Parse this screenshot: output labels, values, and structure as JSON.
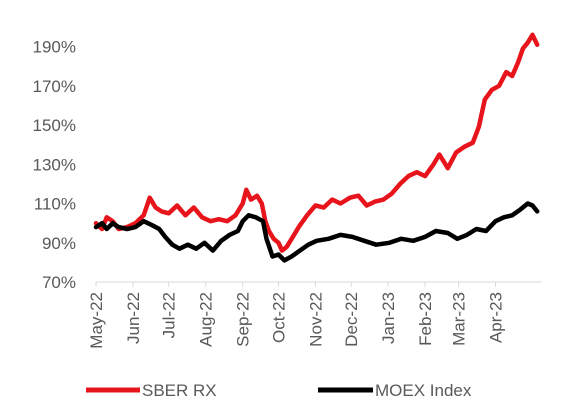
{
  "chart_data": {
    "type": "line",
    "title": "",
    "xlabel": "",
    "ylabel": "",
    "ylim": [
      70,
      200
    ],
    "yticks": [
      70,
      90,
      110,
      130,
      150,
      170,
      190
    ],
    "ytick_labels": [
      "70%",
      "90%",
      "110%",
      "130%",
      "150%",
      "170%",
      "190%"
    ],
    "x_range": [
      "2022-05-01",
      "2023-05-10"
    ],
    "xticks": [
      "2022-05-01",
      "2022-06-01",
      "2022-07-01",
      "2022-08-01",
      "2022-09-01",
      "2022-10-01",
      "2022-11-01",
      "2022-12-01",
      "2023-01-01",
      "2023-02-01",
      "2023-03-01",
      "2023-04-01"
    ],
    "xtick_labels": [
      "May-22",
      "Jun-22",
      "Jul-22",
      "Aug-22",
      "Sep-22",
      "Oct-22",
      "Nov-22",
      "Dec-22",
      "Jan-23",
      "Feb-23",
      "Mar-23",
      "Apr-23"
    ],
    "grid": false,
    "legend_position": "bottom",
    "series": [
      {
        "name": "SBER RX",
        "color": "#e8141b",
        "points": [
          [
            "2022-05-01",
            100
          ],
          [
            "2022-05-06",
            97
          ],
          [
            "2022-05-10",
            103
          ],
          [
            "2022-05-15",
            101
          ],
          [
            "2022-05-20",
            97
          ],
          [
            "2022-05-27",
            98
          ],
          [
            "2022-06-03",
            100
          ],
          [
            "2022-06-10",
            104
          ],
          [
            "2022-06-15",
            113
          ],
          [
            "2022-06-20",
            108
          ],
          [
            "2022-06-25",
            106
          ],
          [
            "2022-07-01",
            105
          ],
          [
            "2022-07-08",
            109
          ],
          [
            "2022-07-15",
            104
          ],
          [
            "2022-07-22",
            108
          ],
          [
            "2022-07-29",
            103
          ],
          [
            "2022-08-05",
            101
          ],
          [
            "2022-08-12",
            102
          ],
          [
            "2022-08-19",
            101
          ],
          [
            "2022-08-26",
            104
          ],
          [
            "2022-09-01",
            110
          ],
          [
            "2022-09-04",
            117
          ],
          [
            "2022-09-08",
            112
          ],
          [
            "2022-09-13",
            114
          ],
          [
            "2022-09-17",
            110
          ],
          [
            "2022-09-20",
            101
          ],
          [
            "2022-09-23",
            96
          ],
          [
            "2022-09-27",
            92
          ],
          [
            "2022-10-01",
            90
          ],
          [
            "2022-10-04",
            86
          ],
          [
            "2022-10-08",
            88
          ],
          [
            "2022-10-13",
            93
          ],
          [
            "2022-10-18",
            98
          ],
          [
            "2022-10-25",
            104
          ],
          [
            "2022-11-01",
            109
          ],
          [
            "2022-11-08",
            108
          ],
          [
            "2022-11-15",
            112
          ],
          [
            "2022-11-22",
            110
          ],
          [
            "2022-11-30",
            113
          ],
          [
            "2022-12-07",
            114
          ],
          [
            "2022-12-14",
            109
          ],
          [
            "2022-12-21",
            111
          ],
          [
            "2022-12-28",
            112
          ],
          [
            "2023-01-04",
            115
          ],
          [
            "2023-01-11",
            120
          ],
          [
            "2023-01-18",
            124
          ],
          [
            "2023-01-25",
            126
          ],
          [
            "2023-02-01",
            124
          ],
          [
            "2023-02-08",
            130
          ],
          [
            "2023-02-13",
            135
          ],
          [
            "2023-02-20",
            128
          ],
          [
            "2023-02-27",
            136
          ],
          [
            "2023-03-06",
            139
          ],
          [
            "2023-03-13",
            141
          ],
          [
            "2023-03-18",
            149
          ],
          [
            "2023-03-23",
            163
          ],
          [
            "2023-03-29",
            168
          ],
          [
            "2023-04-04",
            170
          ],
          [
            "2023-04-10",
            177
          ],
          [
            "2023-04-15",
            175
          ],
          [
            "2023-04-20",
            182
          ],
          [
            "2023-04-24",
            189
          ],
          [
            "2023-04-28",
            192
          ],
          [
            "2023-05-02",
            196
          ],
          [
            "2023-05-06",
            191
          ]
        ]
      },
      {
        "name": "MOEX Index",
        "color": "#000000",
        "points": [
          [
            "2022-05-01",
            98
          ],
          [
            "2022-05-06",
            100
          ],
          [
            "2022-05-10",
            97
          ],
          [
            "2022-05-15",
            100
          ],
          [
            "2022-05-20",
            98
          ],
          [
            "2022-05-27",
            97
          ],
          [
            "2022-06-03",
            98
          ],
          [
            "2022-06-10",
            101
          ],
          [
            "2022-06-17",
            99
          ],
          [
            "2022-06-23",
            97
          ],
          [
            "2022-06-28",
            93
          ],
          [
            "2022-07-04",
            89
          ],
          [
            "2022-07-10",
            87
          ],
          [
            "2022-07-17",
            89
          ],
          [
            "2022-07-24",
            87
          ],
          [
            "2022-07-31",
            90
          ],
          [
            "2022-08-07",
            86
          ],
          [
            "2022-08-14",
            91
          ],
          [
            "2022-08-21",
            94
          ],
          [
            "2022-08-28",
            96
          ],
          [
            "2022-09-01",
            101
          ],
          [
            "2022-09-06",
            104
          ],
          [
            "2022-09-12",
            103
          ],
          [
            "2022-09-18",
            101
          ],
          [
            "2022-09-21",
            92
          ],
          [
            "2022-09-26",
            83
          ],
          [
            "2022-10-01",
            84
          ],
          [
            "2022-10-06",
            81
          ],
          [
            "2022-10-12",
            83
          ],
          [
            "2022-10-19",
            86
          ],
          [
            "2022-10-26",
            89
          ],
          [
            "2022-11-02",
            91
          ],
          [
            "2022-11-12",
            92
          ],
          [
            "2022-11-22",
            94
          ],
          [
            "2022-12-02",
            93
          ],
          [
            "2022-12-12",
            91
          ],
          [
            "2022-12-22",
            89
          ],
          [
            "2023-01-02",
            90
          ],
          [
            "2023-01-12",
            92
          ],
          [
            "2023-01-22",
            91
          ],
          [
            "2023-02-01",
            93
          ],
          [
            "2023-02-10",
            96
          ],
          [
            "2023-02-20",
            95
          ],
          [
            "2023-02-28",
            92
          ],
          [
            "2023-03-08",
            94
          ],
          [
            "2023-03-16",
            97
          ],
          [
            "2023-03-24",
            96
          ],
          [
            "2023-04-01",
            101
          ],
          [
            "2023-04-08",
            103
          ],
          [
            "2023-04-15",
            104
          ],
          [
            "2023-04-22",
            107
          ],
          [
            "2023-04-28",
            110
          ],
          [
            "2023-05-02",
            109
          ],
          [
            "2023-05-06",
            106
          ]
        ]
      }
    ]
  }
}
